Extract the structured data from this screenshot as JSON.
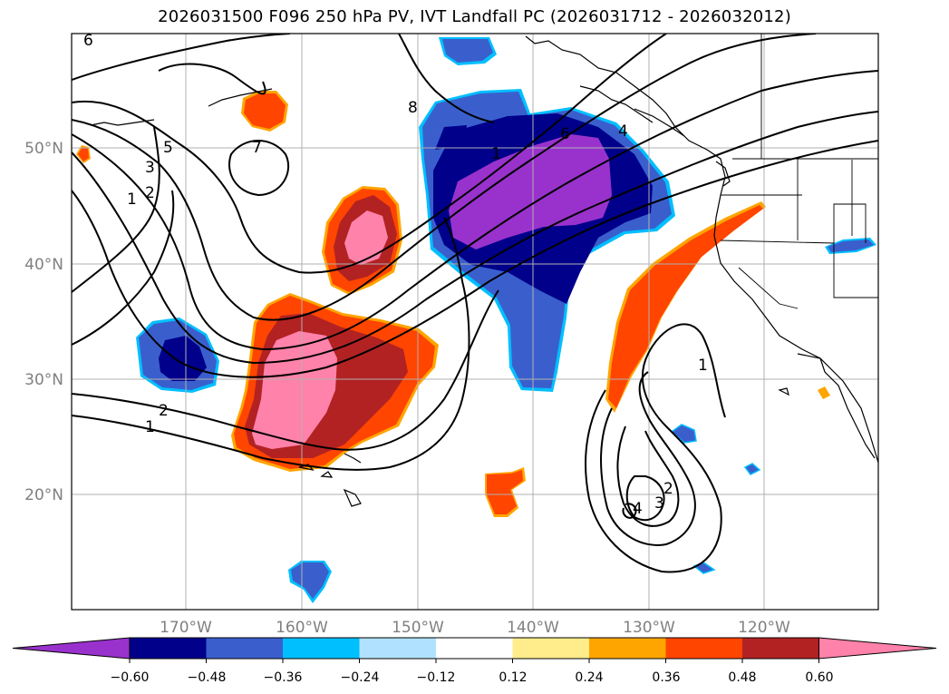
{
  "title": "2026031500 F096 250 hPa PV, IVT Landfall PC (2026031712 - 2026032012)",
  "lat_labels": [
    "50°N",
    "40°N",
    "30°N",
    "20°N"
  ],
  "lon_labels": [
    "170°W",
    "160°W",
    "150°W",
    "140°W",
    "130°W",
    "120°W"
  ],
  "contour_labels": [
    "6",
    "8",
    "5",
    "3",
    "2",
    "1",
    "7",
    "1",
    "6",
    "4",
    "2",
    "1",
    "1",
    "2",
    "3",
    "4"
  ],
  "colorbar": {
    "colors": [
      "#9932CC",
      "#00008B",
      "#3A5FCD",
      "#00BFFF",
      "#B0E2FF",
      "#FFFFFF",
      "#FFEC8B",
      "#FFA500",
      "#FF4500",
      "#B22222",
      "#FF82AB"
    ],
    "tick_labels": [
      "−0.60",
      "−0.48",
      "−0.36",
      "−0.24",
      "−0.12",
      "0.12",
      "0.24",
      "0.36",
      "0.48",
      "0.60"
    ]
  },
  "colors": {
    "gridline": "#b0b0b0",
    "contour": "#000000",
    "coastline": "#000000"
  }
}
